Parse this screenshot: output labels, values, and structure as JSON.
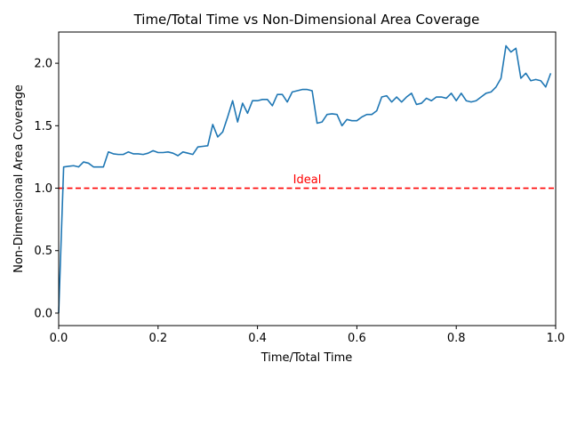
{
  "chart_data": {
    "type": "line",
    "title": "Time/Total Time vs Non-Dimensional Area Coverage",
    "xlabel": "Time/Total Time",
    "ylabel": "Non-Dimensional Area Coverage",
    "xlim": [
      0,
      1
    ],
    "ylim": [
      -0.1,
      2.25
    ],
    "xticks": [
      0,
      0.2,
      0.4,
      0.6,
      0.8,
      1.0
    ],
    "xtick_labels": [
      "0.0",
      "0.2",
      "0.4",
      "0.6",
      "0.8",
      "1.0"
    ],
    "yticks": [
      0,
      0.5,
      1.0,
      1.5,
      2.0
    ],
    "ytick_labels": [
      "0.0",
      "0.5",
      "1.0",
      "1.5",
      "2.0"
    ],
    "grid": false,
    "series": [
      {
        "color": "#1f77b4",
        "x": [
          0,
          0.01,
          0.02,
          0.03,
          0.04,
          0.05,
          0.06,
          0.07,
          0.08,
          0.09,
          0.1,
          0.11,
          0.12,
          0.13,
          0.14,
          0.15,
          0.16,
          0.17,
          0.18,
          0.19,
          0.2,
          0.21,
          0.22,
          0.23,
          0.24,
          0.25,
          0.26,
          0.27,
          0.28,
          0.29,
          0.3,
          0.31,
          0.32,
          0.33,
          0.34,
          0.35,
          0.36,
          0.37,
          0.38,
          0.39,
          0.4,
          0.41,
          0.42,
          0.43,
          0.44,
          0.45,
          0.46,
          0.47,
          0.48,
          0.49,
          0.5,
          0.51,
          0.52,
          0.53,
          0.54,
          0.55,
          0.56,
          0.57,
          0.58,
          0.59,
          0.6,
          0.61,
          0.62,
          0.63,
          0.64,
          0.65,
          0.66,
          0.67,
          0.68,
          0.69,
          0.7,
          0.71,
          0.72,
          0.73,
          0.74,
          0.75,
          0.76,
          0.77,
          0.78,
          0.79,
          0.8,
          0.81,
          0.82,
          0.83,
          0.84,
          0.85,
          0.86,
          0.87,
          0.88,
          0.89,
          0.9,
          0.91,
          0.92,
          0.93,
          0.94,
          0.95,
          0.96,
          0.97,
          0.98,
          0.99
        ],
        "y": [
          0.0,
          1.17,
          1.175,
          1.18,
          1.17,
          1.21,
          1.2,
          1.17,
          1.17,
          1.17,
          1.29,
          1.275,
          1.27,
          1.27,
          1.29,
          1.275,
          1.275,
          1.27,
          1.28,
          1.3,
          1.285,
          1.285,
          1.29,
          1.28,
          1.26,
          1.29,
          1.28,
          1.27,
          1.33,
          1.335,
          1.34,
          1.51,
          1.41,
          1.45,
          1.57,
          1.7,
          1.53,
          1.68,
          1.6,
          1.7,
          1.7,
          1.71,
          1.71,
          1.66,
          1.75,
          1.75,
          1.69,
          1.77,
          1.78,
          1.79,
          1.79,
          1.78,
          1.52,
          1.53,
          1.59,
          1.595,
          1.59,
          1.5,
          1.55,
          1.54,
          1.54,
          1.57,
          1.59,
          1.59,
          1.62,
          1.73,
          1.74,
          1.69,
          1.73,
          1.69,
          1.73,
          1.76,
          1.67,
          1.68,
          1.72,
          1.7,
          1.73,
          1.73,
          1.72,
          1.76,
          1.7,
          1.76,
          1.7,
          1.69,
          1.7,
          1.73,
          1.76,
          1.77,
          1.81,
          1.88,
          2.14,
          2.09,
          2.12,
          1.88,
          1.92,
          1.86,
          1.87,
          1.86,
          1.81,
          1.92
        ]
      }
    ],
    "reference_line": {
      "y": 1.0,
      "color": "#ff0000",
      "style": "dashed",
      "label": "Ideal",
      "label_x": 0.5,
      "label_y": 1.04
    }
  }
}
